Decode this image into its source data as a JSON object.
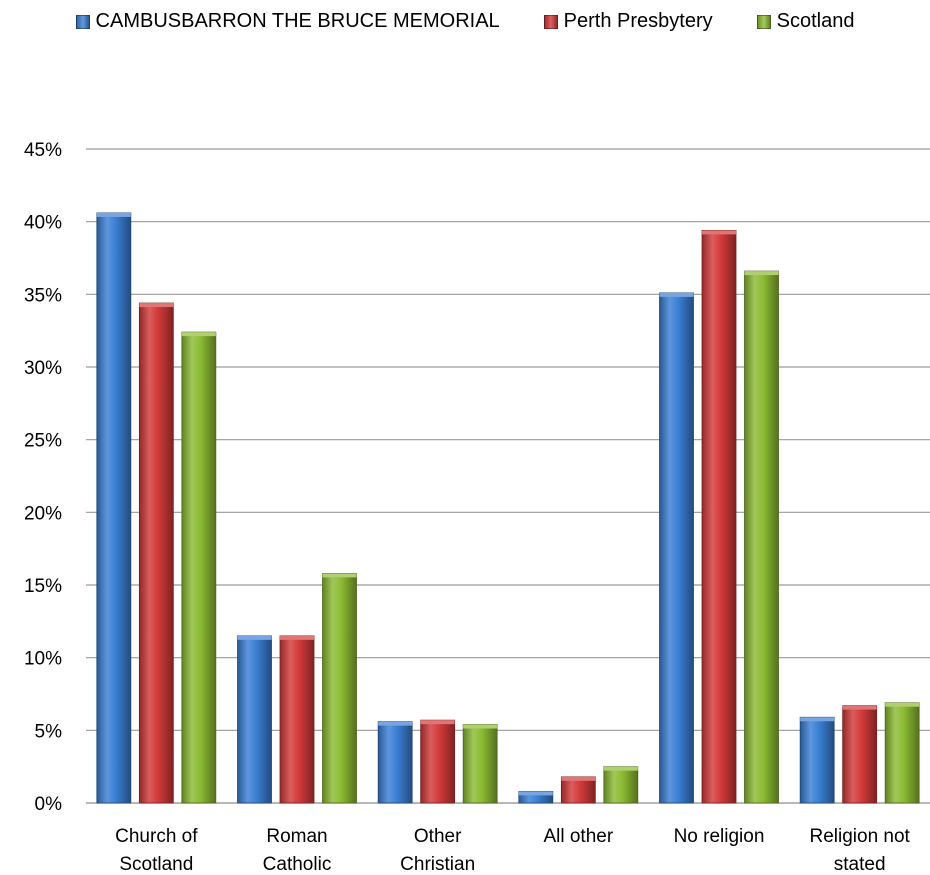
{
  "chart_data": {
    "type": "bar",
    "categories": [
      [
        "Church of",
        "Scotland"
      ],
      [
        "Roman",
        "Catholic"
      ],
      [
        "Other",
        "Christian"
      ],
      [
        "All other"
      ],
      [
        "No religion"
      ],
      [
        "Religion not",
        "stated"
      ]
    ],
    "series": [
      {
        "name": "CAMBUSBARRON THE BRUCE MEMORIAL",
        "color": "#3b7fd4",
        "values": [
          40.6,
          11.5,
          5.6,
          0.8,
          35.1,
          5.9
        ]
      },
      {
        "name": "Perth Presbytery",
        "color": "#d33a3a",
        "values": [
          34.4,
          11.5,
          5.7,
          1.8,
          39.4,
          6.7
        ]
      },
      {
        "name": "Scotland",
        "color": "#8cbb33",
        "values": [
          32.4,
          15.8,
          5.4,
          2.5,
          36.6,
          6.9
        ]
      }
    ],
    "ylim": [
      0,
      45
    ],
    "yticks": [
      0,
      5,
      10,
      15,
      20,
      25,
      30,
      35,
      40,
      45
    ],
    "ytick_labels": [
      "0%",
      "5%",
      "10%",
      "15%",
      "20%",
      "25%",
      "30%",
      "35%",
      "40%",
      "45%"
    ],
    "grid": true,
    "legend_position": "top"
  }
}
